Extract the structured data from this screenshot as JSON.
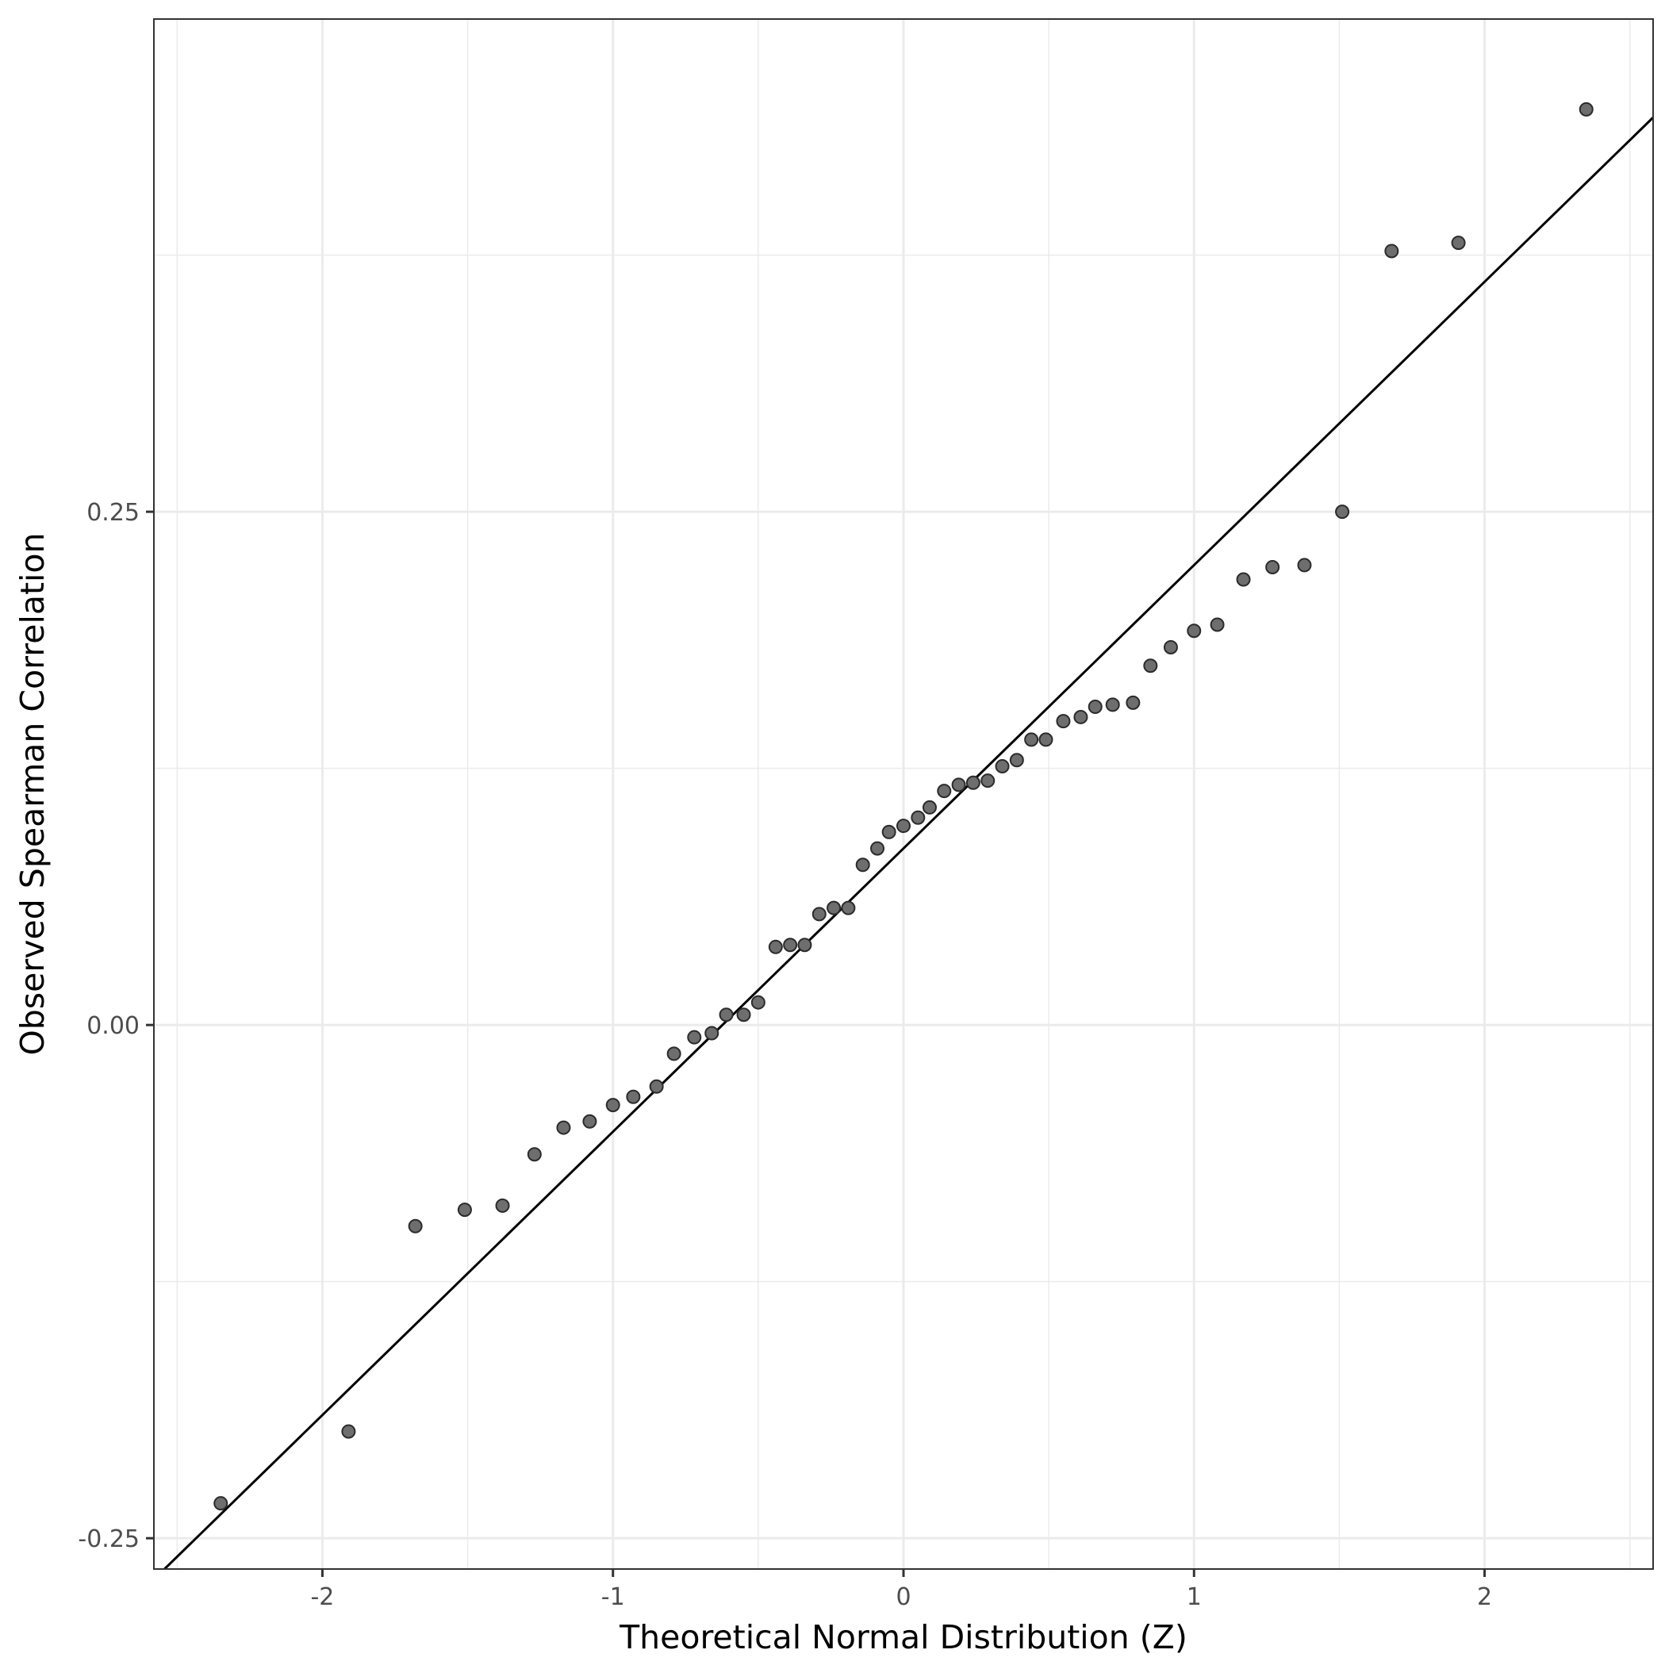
{
  "chart_data": {
    "type": "scatter",
    "xlabel": "Theoretical Normal Distribution (Z)",
    "ylabel": "Observed Spearman Correlation",
    "xlim": [
      -2.58,
      2.58
    ],
    "ylim": [
      -0.265,
      0.49
    ],
    "x_ticks": [
      -2,
      -1,
      0,
      1,
      2
    ],
    "x_tick_labels": [
      "-2",
      "-1",
      "0",
      "1",
      "2"
    ],
    "y_ticks": [
      -0.25,
      0.0,
      0.25
    ],
    "y_tick_labels": [
      "-0.25",
      "0.00",
      "0.25"
    ],
    "grid": true,
    "colors": {
      "points": "#6e6e6e",
      "point_outline": "#2b2b2b",
      "line": "#000000",
      "grid": "#ebebeb"
    },
    "reference_line": {
      "intercept": 0.086,
      "slope": 0.138
    },
    "series": [
      {
        "points": [
          [
            -2.35,
            -0.233
          ],
          [
            -1.91,
            -0.198
          ],
          [
            -1.68,
            -0.098
          ],
          [
            -1.51,
            -0.09
          ],
          [
            -1.38,
            -0.088
          ],
          [
            -1.27,
            -0.063
          ],
          [
            -1.17,
            -0.05
          ],
          [
            -1.08,
            -0.047
          ],
          [
            -1.0,
            -0.039
          ],
          [
            -0.93,
            -0.035
          ],
          [
            -0.85,
            -0.03
          ],
          [
            -0.79,
            -0.014
          ],
          [
            -0.72,
            -0.006
          ],
          [
            -0.66,
            -0.004
          ],
          [
            -0.61,
            0.005
          ],
          [
            -0.55,
            0.005
          ],
          [
            -0.5,
            0.011
          ],
          [
            -0.44,
            0.038
          ],
          [
            -0.39,
            0.039
          ],
          [
            -0.34,
            0.039
          ],
          [
            -0.29,
            0.054
          ],
          [
            -0.24,
            0.057
          ],
          [
            -0.19,
            0.057
          ],
          [
            -0.14,
            0.078
          ],
          [
            -0.09,
            0.086
          ],
          [
            -0.05,
            0.094
          ],
          [
            0.0,
            0.097
          ],
          [
            0.05,
            0.101
          ],
          [
            0.09,
            0.106
          ],
          [
            0.14,
            0.114
          ],
          [
            0.19,
            0.117
          ],
          [
            0.24,
            0.118
          ],
          [
            0.29,
            0.119
          ],
          [
            0.34,
            0.126
          ],
          [
            0.39,
            0.129
          ],
          [
            0.44,
            0.139
          ],
          [
            0.49,
            0.139
          ],
          [
            0.55,
            0.148
          ],
          [
            0.61,
            0.15
          ],
          [
            0.66,
            0.155
          ],
          [
            0.72,
            0.156
          ],
          [
            0.79,
            0.157
          ],
          [
            0.85,
            0.175
          ],
          [
            0.92,
            0.184
          ],
          [
            1.0,
            0.192
          ],
          [
            1.08,
            0.195
          ],
          [
            1.17,
            0.217
          ],
          [
            1.27,
            0.223
          ],
          [
            1.38,
            0.224
          ],
          [
            1.51,
            0.25
          ],
          [
            1.68,
            0.377
          ],
          [
            1.91,
            0.381
          ],
          [
            2.35,
            0.446
          ]
        ]
      }
    ]
  }
}
